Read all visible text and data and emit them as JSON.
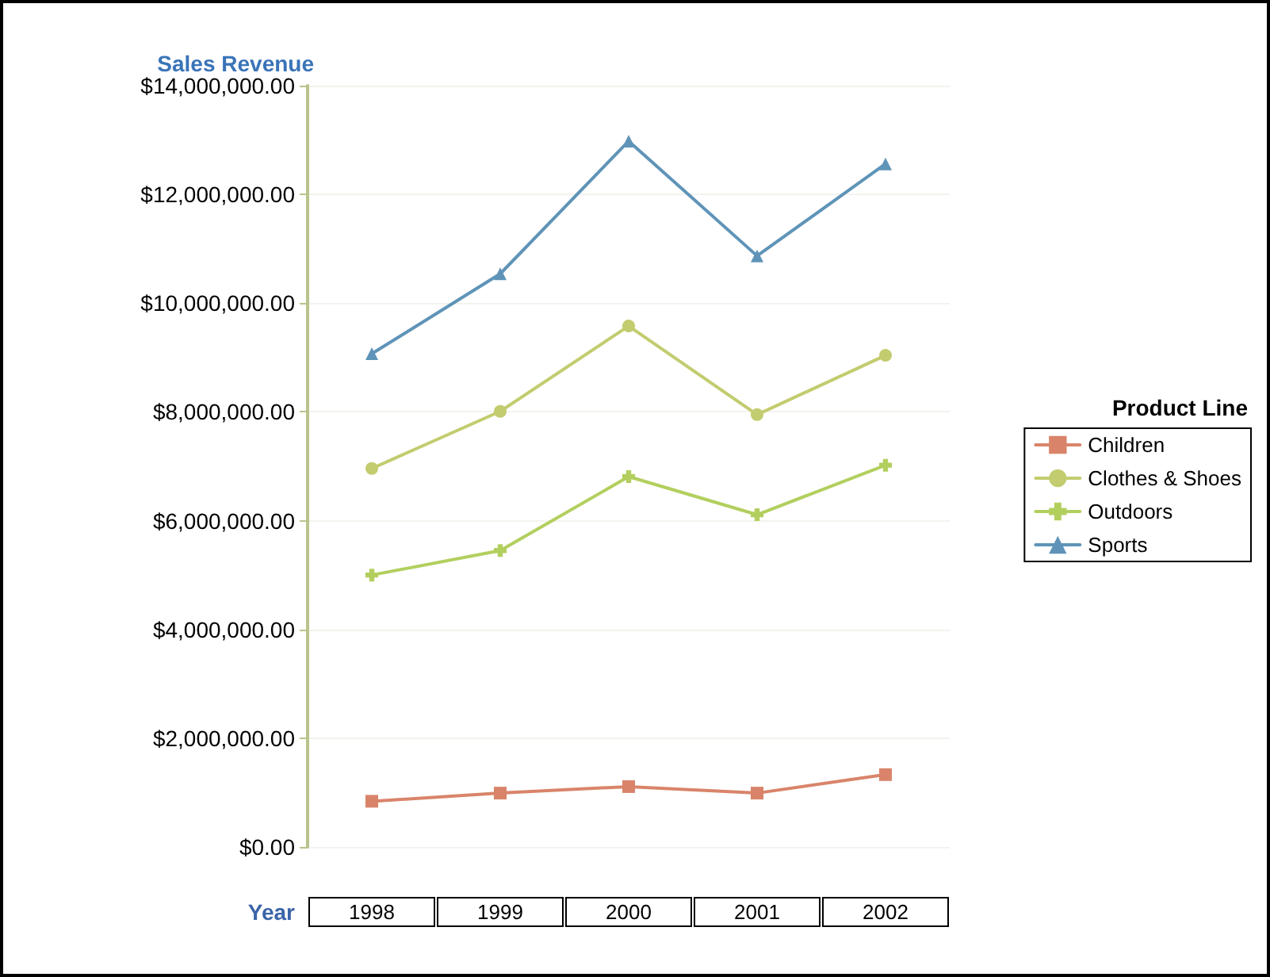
{
  "chart_data": {
    "type": "line",
    "ylabel": "Sales Revenue",
    "xlabel": "Year",
    "legend_title": "Product Line",
    "categories": [
      "1998",
      "1999",
      "2000",
      "2001",
      "2002"
    ],
    "series": [
      {
        "name": "Children",
        "color": "#d9846a",
        "marker": "square",
        "values": [
          840000,
          990000,
          1110000,
          990000,
          1330000
        ]
      },
      {
        "name": "Clothes & Shoes",
        "color": "#c3cc6e",
        "marker": "circle",
        "values": [
          6960000,
          8010000,
          9580000,
          7950000,
          9040000
        ]
      },
      {
        "name": "Outdoors",
        "color": "#b2cf5e",
        "marker": "cross",
        "values": [
          5000000,
          5450000,
          6810000,
          6110000,
          7020000
        ]
      },
      {
        "name": "Sports",
        "color": "#5f94b8",
        "marker": "triangle",
        "values": [
          9070000,
          10540000,
          12980000,
          10870000,
          12560000
        ]
      }
    ],
    "ylim": [
      0,
      14000000
    ],
    "yticks": [
      {
        "value": 0,
        "label": "$0.00"
      },
      {
        "value": 2000000,
        "label": "$2,000,000.00"
      },
      {
        "value": 4000000,
        "label": "$4,000,000.00"
      },
      {
        "value": 6000000,
        "label": "$6,000,000.00"
      },
      {
        "value": 8000000,
        "label": "$8,000,000.00"
      },
      {
        "value": 10000000,
        "label": "$10,000,000.00"
      },
      {
        "value": 12000000,
        "label": "$12,000,000.00"
      },
      {
        "value": 14000000,
        "label": "$14,000,000.00"
      }
    ],
    "grid": "y",
    "legend": "right",
    "line_style": "solid"
  }
}
